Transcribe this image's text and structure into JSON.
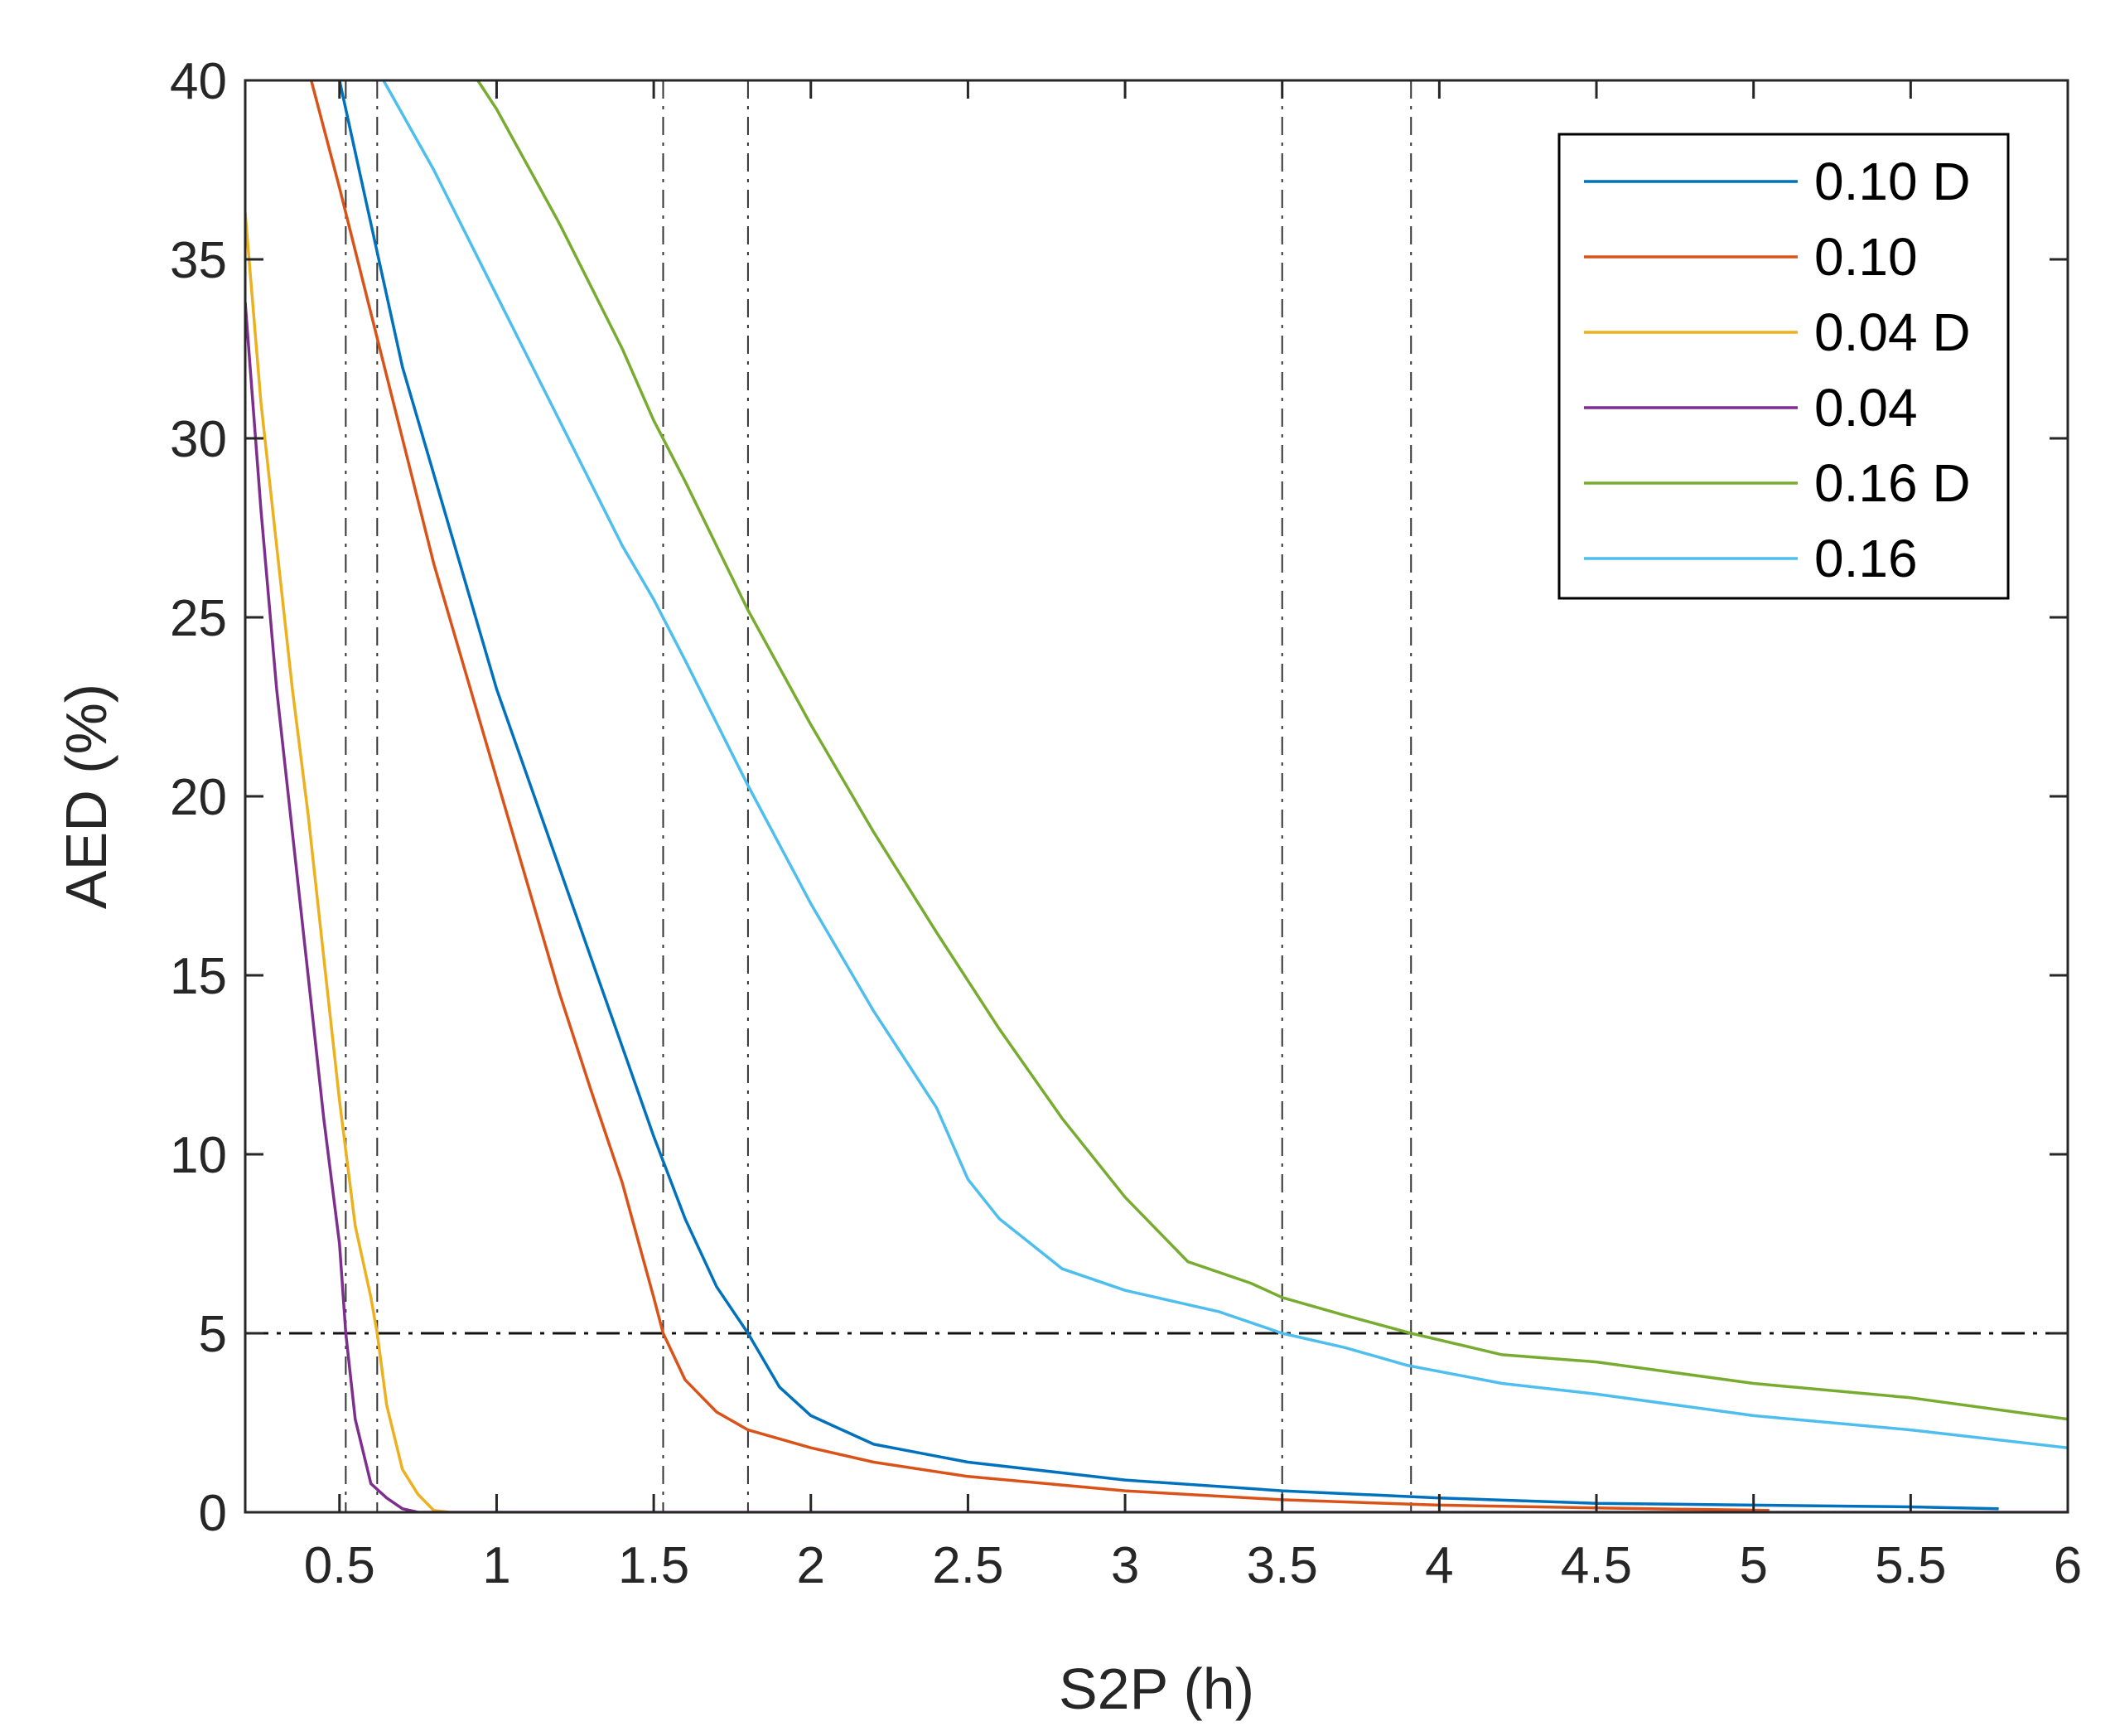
{
  "chart_data": {
    "type": "line",
    "title": "",
    "xlabel": "S2P (h)",
    "ylabel": "AED (%)",
    "xlim": [
      0.2,
      6
    ],
    "ylim": [
      0,
      40
    ],
    "xticks": [
      0.5,
      1,
      1.5,
      2,
      2.5,
      3,
      3.5,
      4,
      4.5,
      5,
      5.5,
      6
    ],
    "xtick_labels": [
      "0.5",
      "1",
      "1.5",
      "2",
      "2.5",
      "3",
      "3.5",
      "4",
      "4.5",
      "5",
      "5.5",
      "6"
    ],
    "yticks": [
      0,
      5,
      10,
      15,
      20,
      25,
      30,
      35,
      40
    ],
    "ytick_labels": [
      "0",
      "5",
      "10",
      "15",
      "20",
      "25",
      "30",
      "35",
      "40"
    ],
    "legend_position": "top-right",
    "reference_lines": {
      "horizontal": [
        5
      ],
      "vertical": [
        0.52,
        0.62,
        1.53,
        1.8,
        3.5,
        3.91
      ],
      "style": "dash-dot"
    },
    "series": [
      {
        "name": "0.10 D",
        "color": "#0072BD",
        "points": [
          [
            0.5,
            40
          ],
          [
            0.6,
            36
          ],
          [
            0.7,
            32
          ],
          [
            0.8,
            29
          ],
          [
            0.9,
            26
          ],
          [
            1.0,
            23
          ],
          [
            1.1,
            20.5
          ],
          [
            1.2,
            18
          ],
          [
            1.3,
            15.5
          ],
          [
            1.4,
            13
          ],
          [
            1.5,
            10.5
          ],
          [
            1.6,
            8.2
          ],
          [
            1.7,
            6.3
          ],
          [
            1.8,
            5
          ],
          [
            1.9,
            3.5
          ],
          [
            2.0,
            2.7
          ],
          [
            2.2,
            1.9
          ],
          [
            2.5,
            1.4
          ],
          [
            3.0,
            0.9
          ],
          [
            3.5,
            0.6
          ],
          [
            4.0,
            0.4
          ],
          [
            4.5,
            0.25
          ],
          [
            5.0,
            0.2
          ],
          [
            5.5,
            0.15
          ],
          [
            5.78,
            0.1
          ]
        ]
      },
      {
        "name": "0.10",
        "color": "#D95319",
        "points": [
          [
            0.41,
            40
          ],
          [
            0.5,
            37
          ],
          [
            0.6,
            33.5
          ],
          [
            0.7,
            30
          ],
          [
            0.8,
            26.5
          ],
          [
            0.9,
            23.5
          ],
          [
            1.0,
            20.5
          ],
          [
            1.1,
            17.5
          ],
          [
            1.2,
            14.5
          ],
          [
            1.3,
            11.8
          ],
          [
            1.4,
            9.2
          ],
          [
            1.5,
            6
          ],
          [
            1.53,
            5
          ],
          [
            1.6,
            3.7
          ],
          [
            1.7,
            2.8
          ],
          [
            1.8,
            2.3
          ],
          [
            2.0,
            1.8
          ],
          [
            2.2,
            1.4
          ],
          [
            2.5,
            1.0
          ],
          [
            3.0,
            0.6
          ],
          [
            3.5,
            0.35
          ],
          [
            4.0,
            0.2
          ],
          [
            4.5,
            0.12
          ],
          [
            5.05,
            0.05
          ]
        ]
      },
      {
        "name": "0.04 D",
        "color": "#EDB120",
        "points": [
          [
            0.2,
            36.3
          ],
          [
            0.25,
            31
          ],
          [
            0.3,
            27
          ],
          [
            0.35,
            23
          ],
          [
            0.4,
            19.5
          ],
          [
            0.45,
            15.5
          ],
          [
            0.5,
            11.5
          ],
          [
            0.55,
            8
          ],
          [
            0.6,
            6
          ],
          [
            0.62,
            5
          ],
          [
            0.65,
            3
          ],
          [
            0.7,
            1.2
          ],
          [
            0.75,
            0.5
          ],
          [
            0.8,
            0.05
          ],
          [
            0.85,
            0
          ]
        ]
      },
      {
        "name": "0.04",
        "color": "#7E2F8E",
        "points": [
          [
            0.2,
            33.8
          ],
          [
            0.25,
            28
          ],
          [
            0.3,
            23
          ],
          [
            0.35,
            19
          ],
          [
            0.4,
            15
          ],
          [
            0.45,
            11
          ],
          [
            0.5,
            7.5
          ],
          [
            0.52,
            5
          ],
          [
            0.55,
            2.6
          ],
          [
            0.6,
            0.8
          ],
          [
            0.65,
            0.4
          ],
          [
            0.7,
            0.1
          ],
          [
            0.75,
            0
          ],
          [
            1.0,
            0
          ],
          [
            6.0,
            0
          ]
        ]
      },
      {
        "name": "0.16 D",
        "color": "#77AC30",
        "points": [
          [
            0.94,
            40
          ],
          [
            1.0,
            39.2
          ],
          [
            1.2,
            36
          ],
          [
            1.4,
            32.5
          ],
          [
            1.5,
            30.5
          ],
          [
            1.6,
            28.8
          ],
          [
            1.8,
            25.2
          ],
          [
            2.0,
            22
          ],
          [
            2.2,
            19
          ],
          [
            2.4,
            16.2
          ],
          [
            2.6,
            13.5
          ],
          [
            2.8,
            11
          ],
          [
            3.0,
            8.8
          ],
          [
            3.2,
            7
          ],
          [
            3.4,
            6.4
          ],
          [
            3.5,
            6
          ],
          [
            3.7,
            5.5
          ],
          [
            3.91,
            5
          ],
          [
            4.2,
            4.4
          ],
          [
            4.5,
            4.2
          ],
          [
            5.0,
            3.6
          ],
          [
            5.5,
            3.2
          ],
          [
            6.0,
            2.6
          ]
        ]
      },
      {
        "name": "0.16",
        "color": "#4DBEEE",
        "points": [
          [
            0.64,
            40
          ],
          [
            0.8,
            37.5
          ],
          [
            1.0,
            34
          ],
          [
            1.2,
            30.5
          ],
          [
            1.4,
            27
          ],
          [
            1.5,
            25.5
          ],
          [
            1.6,
            23.8
          ],
          [
            1.8,
            20.3
          ],
          [
            2.0,
            17
          ],
          [
            2.2,
            14
          ],
          [
            2.4,
            11.3
          ],
          [
            2.5,
            9.3
          ],
          [
            2.6,
            8.2
          ],
          [
            2.8,
            6.8
          ],
          [
            3.0,
            6.2
          ],
          [
            3.2,
            5.8
          ],
          [
            3.3,
            5.6
          ],
          [
            3.5,
            5
          ],
          [
            3.7,
            4.6
          ],
          [
            3.9,
            4.1
          ],
          [
            4.2,
            3.6
          ],
          [
            4.5,
            3.3
          ],
          [
            5.0,
            2.7
          ],
          [
            5.5,
            2.3
          ],
          [
            6.0,
            1.8
          ]
        ]
      }
    ]
  }
}
